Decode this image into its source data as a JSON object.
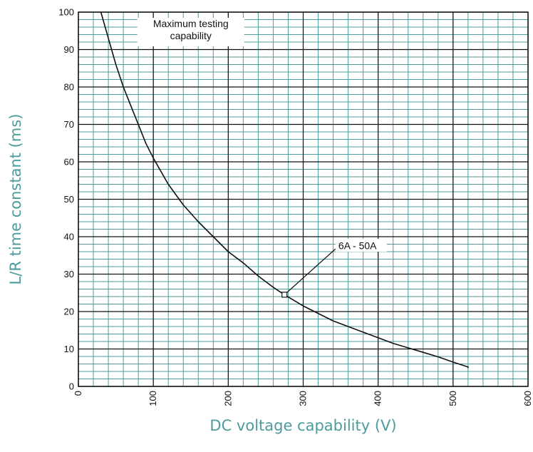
{
  "chart_data": {
    "type": "line",
    "title": "",
    "xlabel": "DC voltage capability (V)",
    "ylabel": "L/R time constant (ms)",
    "xlim": [
      0,
      600
    ],
    "ylim": [
      0,
      100
    ],
    "x_ticks": [
      0,
      100,
      200,
      300,
      400,
      500,
      600
    ],
    "y_ticks": [
      0,
      10,
      20,
      30,
      40,
      50,
      60,
      70,
      80,
      90,
      100
    ],
    "grid": true,
    "x_minor_step": 20,
    "y_minor_step": 2,
    "series": [
      {
        "x": [
          30,
          40,
          50,
          60,
          70,
          80,
          90,
          100,
          120,
          140,
          160,
          180,
          200,
          220,
          240,
          260,
          275,
          300,
          320,
          340,
          360,
          380,
          400,
          420,
          440,
          460,
          480,
          500,
          520,
          520
        ],
        "y": [
          100,
          93,
          86,
          80,
          75,
          70,
          65,
          61,
          54,
          48.5,
          44,
          40,
          36,
          33,
          29.5,
          26.5,
          24.5,
          21.5,
          19.5,
          17.5,
          16,
          14.5,
          13,
          11.5,
          10.3,
          9.1,
          7.9,
          6.5,
          5.2,
          4.9
        ]
      }
    ],
    "annotations": [
      {
        "text_lines": [
          "Maximum testing",
          "capability"
        ],
        "x": 150,
        "y": 96
      },
      {
        "text": "6A - 50A",
        "marker": [
          275,
          24.5
        ],
        "label_at": [
          345,
          37.5
        ]
      }
    ],
    "colors": {
      "grid_minor": "#4d9b9b",
      "grid_major": "#111111",
      "curve": "#111111",
      "axis_title": "#4d9b9b"
    }
  }
}
